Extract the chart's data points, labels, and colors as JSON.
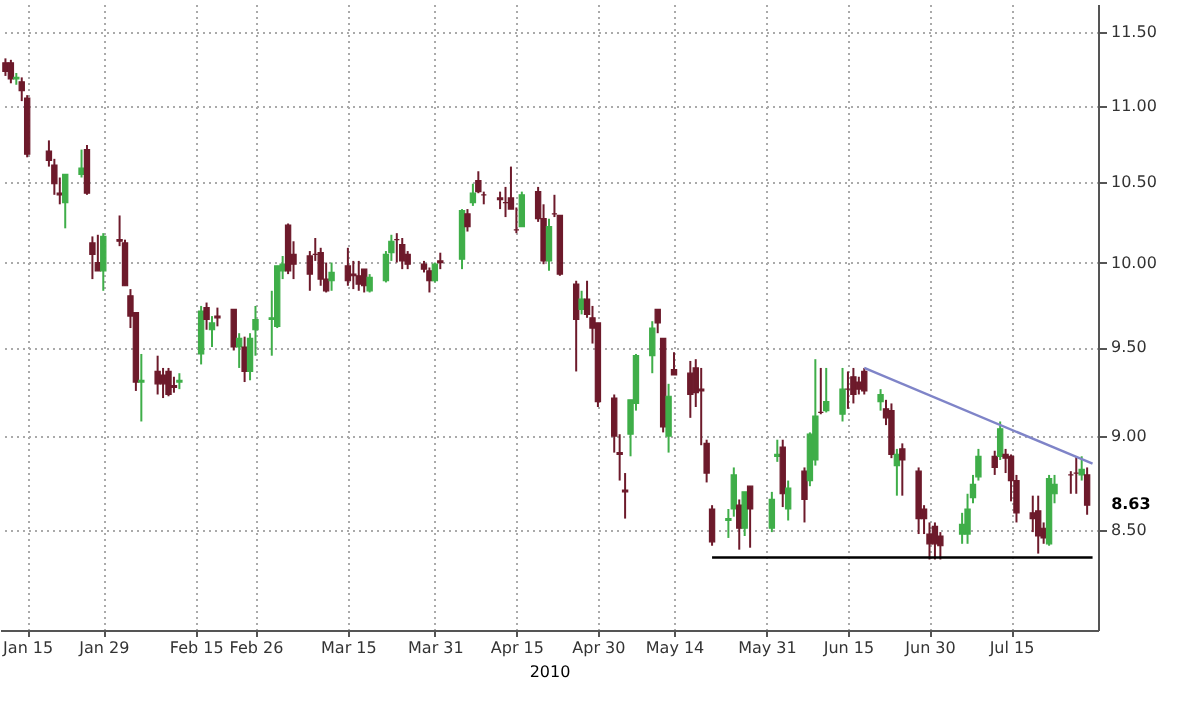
{
  "chart_data": {
    "type": "candlestick",
    "xlabel": "2010",
    "log": true,
    "grid": true,
    "x": [
      "2010-01-11",
      "2010-01-12",
      "2010-01-13",
      "2010-01-14",
      "2010-01-15",
      "2010-01-19",
      "2010-01-20",
      "2010-01-21",
      "2010-01-22",
      "2010-01-25",
      "2010-01-26",
      "2010-01-27",
      "2010-01-28",
      "2010-01-29",
      "2010-02-01",
      "2010-02-02",
      "2010-02-03",
      "2010-02-04",
      "2010-02-05",
      "2010-02-08",
      "2010-02-09",
      "2010-02-10",
      "2010-02-11",
      "2010-02-12",
      "2010-02-16",
      "2010-02-17",
      "2010-02-18",
      "2010-02-19",
      "2010-02-22",
      "2010-02-23",
      "2010-02-24",
      "2010-02-25",
      "2010-02-26",
      "2010-03-01",
      "2010-03-02",
      "2010-03-03",
      "2010-03-04",
      "2010-03-05",
      "2010-03-08",
      "2010-03-09",
      "2010-03-10",
      "2010-03-11",
      "2010-03-12",
      "2010-03-15",
      "2010-03-16",
      "2010-03-17",
      "2010-03-18",
      "2010-03-19",
      "2010-03-22",
      "2010-03-23",
      "2010-03-24",
      "2010-03-25",
      "2010-03-26",
      "2010-03-29",
      "2010-03-30",
      "2010-03-31",
      "2010-04-01",
      "2010-04-05",
      "2010-04-06",
      "2010-04-07",
      "2010-04-08",
      "2010-04-09",
      "2010-04-12",
      "2010-04-13",
      "2010-04-14",
      "2010-04-15",
      "2010-04-16",
      "2010-04-19",
      "2010-04-20",
      "2010-04-21",
      "2010-04-22",
      "2010-04-23",
      "2010-04-26",
      "2010-04-27",
      "2010-04-28",
      "2010-04-29",
      "2010-04-30",
      "2010-05-03",
      "2010-05-04",
      "2010-05-05",
      "2010-05-06",
      "2010-05-07",
      "2010-05-10",
      "2010-05-11",
      "2010-05-12",
      "2010-05-13",
      "2010-05-14",
      "2010-05-17",
      "2010-05-18",
      "2010-05-19",
      "2010-05-20",
      "2010-05-21",
      "2010-05-24",
      "2010-05-25",
      "2010-05-26",
      "2010-05-27",
      "2010-05-28",
      "2010-06-01",
      "2010-06-02",
      "2010-06-03",
      "2010-06-04",
      "2010-06-07",
      "2010-06-08",
      "2010-06-09",
      "2010-06-10",
      "2010-06-11",
      "2010-06-14",
      "2010-06-15",
      "2010-06-16",
      "2010-06-17",
      "2010-06-18",
      "2010-06-21",
      "2010-06-22",
      "2010-06-23",
      "2010-06-24",
      "2010-06-25",
      "2010-06-28",
      "2010-06-29",
      "2010-06-30",
      "2010-07-01",
      "2010-07-02",
      "2010-07-06",
      "2010-07-07",
      "2010-07-08",
      "2010-07-09",
      "2010-07-12",
      "2010-07-13",
      "2010-07-14",
      "2010-07-15",
      "2010-07-16",
      "2010-07-19",
      "2010-07-20",
      "2010-07-21",
      "2010-07-22",
      "2010-07-23",
      "2010-07-26",
      "2010-07-27",
      "2010-07-28",
      "2010-07-29"
    ],
    "ohlc": [
      [
        11.29,
        11.32,
        11.2,
        11.23
      ],
      [
        11.29,
        11.31,
        11.15,
        11.18
      ],
      [
        11.18,
        11.22,
        11.14,
        11.19
      ],
      [
        11.16,
        11.19,
        11.03,
        11.1
      ],
      [
        11.05,
        11.07,
        10.66,
        10.68
      ],
      [
        10.7,
        10.77,
        10.6,
        10.64
      ],
      [
        10.61,
        10.65,
        10.42,
        10.49
      ],
      [
        10.43,
        10.53,
        10.36,
        10.42
      ],
      [
        10.37,
        10.55,
        10.21,
        10.55
      ],
      [
        10.55,
        10.71,
        10.53,
        10.59
      ],
      [
        10.71,
        10.74,
        10.42,
        10.43
      ],
      [
        10.12,
        10.16,
        9.9,
        10.05
      ],
      [
        10.0,
        10.17,
        9.95,
        9.95
      ],
      [
        9.95,
        10.18,
        9.83,
        10.16
      ],
      [
        10.14,
        10.29,
        10.1,
        10.13
      ],
      [
        10.12,
        10.14,
        9.86,
        9.86
      ],
      [
        9.8,
        9.84,
        9.61,
        9.68
      ],
      [
        9.7,
        9.7,
        9.25,
        9.3
      ],
      [
        9.3,
        9.46,
        9.08,
        9.31
      ],
      [
        9.36,
        9.45,
        9.23,
        9.29
      ],
      [
        9.34,
        9.38,
        9.21,
        9.29
      ],
      [
        9.36,
        9.38,
        9.22,
        9.23
      ],
      [
        9.28,
        9.33,
        9.24,
        9.27
      ],
      [
        9.3,
        9.35,
        9.26,
        9.31
      ],
      [
        9.46,
        9.74,
        9.4,
        9.71
      ],
      [
        9.73,
        9.76,
        9.6,
        9.66
      ],
      [
        9.6,
        9.68,
        9.5,
        9.64
      ],
      [
        9.68,
        9.73,
        9.62,
        9.67
      ],
      [
        9.72,
        9.72,
        9.48,
        9.5
      ],
      [
        9.5,
        9.58,
        9.38,
        9.55
      ],
      [
        9.5,
        9.56,
        9.3,
        9.36
      ],
      [
        9.36,
        9.58,
        9.31,
        9.55
      ],
      [
        9.6,
        9.74,
        9.45,
        9.66
      ],
      [
        9.66,
        9.83,
        9.45,
        9.67
      ],
      [
        9.62,
        9.98,
        9.61,
        9.98
      ],
      [
        9.95,
        10.04,
        9.9,
        9.99
      ],
      [
        10.23,
        10.24,
        9.93,
        9.95
      ],
      [
        10.05,
        10.13,
        9.9,
        9.99
      ],
      [
        10.04,
        10.07,
        9.83,
        9.93
      ],
      [
        10.05,
        10.15,
        10.01,
        10.05
      ],
      [
        10.06,
        10.09,
        9.86,
        9.9
      ],
      [
        9.9,
        10.0,
        9.82,
        9.83
      ],
      [
        9.89,
        10.0,
        9.83,
        9.94
      ],
      [
        9.98,
        10.09,
        9.86,
        9.89
      ],
      [
        9.93,
        10.01,
        9.84,
        9.92
      ],
      [
        9.92,
        10.01,
        9.83,
        9.87
      ],
      [
        9.96,
        9.96,
        9.82,
        9.86
      ],
      [
        9.83,
        9.93,
        9.82,
        9.91
      ],
      [
        9.89,
        10.07,
        9.88,
        10.05
      ],
      [
        10.06,
        10.17,
        10.01,
        10.13
      ],
      [
        10.14,
        10.18,
        10.0,
        10.14
      ],
      [
        10.11,
        10.15,
        9.96,
        10.01
      ],
      [
        10.05,
        10.07,
        9.96,
        9.99
      ],
      [
        9.99,
        10.01,
        9.94,
        9.96
      ],
      [
        9.95,
        9.97,
        9.82,
        9.89
      ],
      [
        9.89,
        10.0,
        9.88,
        9.99
      ],
      [
        10.01,
        10.06,
        9.96,
        10.0
      ],
      [
        10.02,
        10.33,
        9.96,
        10.32
      ],
      [
        10.3,
        10.33,
        10.19,
        10.22
      ],
      [
        10.37,
        10.49,
        10.35,
        10.43
      ],
      [
        10.51,
        10.57,
        10.43,
        10.44
      ],
      [
        10.42,
        10.44,
        10.36,
        10.42
      ],
      [
        10.4,
        10.44,
        10.33,
        10.39
      ],
      [
        10.37,
        10.47,
        10.28,
        10.37
      ],
      [
        10.4,
        10.6,
        10.33,
        10.33
      ],
      [
        10.2,
        10.34,
        10.18,
        10.2
      ],
      [
        10.22,
        10.44,
        10.22,
        10.42
      ],
      [
        10.44,
        10.47,
        10.25,
        10.27
      ],
      [
        10.27,
        10.36,
        9.99,
        10.01
      ],
      [
        10.01,
        10.27,
        9.95,
        10.22
      ],
      [
        10.3,
        10.42,
        10.28,
        10.3
      ],
      [
        10.29,
        10.29,
        9.92,
        9.93
      ],
      [
        9.87,
        9.89,
        9.36,
        9.66
      ],
      [
        9.72,
        9.83,
        9.69,
        9.78
      ],
      [
        9.78,
        9.89,
        9.67,
        9.69
      ],
      [
        9.67,
        9.74,
        9.52,
        9.61
      ],
      [
        9.64,
        9.64,
        9.16,
        9.19
      ],
      [
        9.21,
        9.23,
        8.91,
        9.0
      ],
      [
        8.91,
        9.01,
        8.76,
        8.9
      ],
      [
        8.71,
        8.8,
        8.56,
        8.7
      ],
      [
        9.01,
        9.2,
        8.89,
        9.2
      ],
      [
        9.18,
        9.46,
        9.14,
        9.45
      ],
      [
        9.45,
        9.65,
        9.35,
        9.61
      ],
      [
        9.72,
        9.72,
        9.58,
        9.64
      ],
      [
        9.55,
        9.55,
        9.02,
        9.05
      ],
      [
        9.0,
        9.29,
        8.91,
        9.22
      ],
      [
        9.37,
        9.47,
        9.34,
        9.34
      ],
      [
        9.35,
        9.42,
        9.1,
        9.23
      ],
      [
        9.38,
        9.43,
        9.16,
        9.24
      ],
      [
        9.26,
        9.38,
        8.95,
        9.25
      ],
      [
        8.96,
        8.98,
        8.75,
        8.8
      ],
      [
        8.61,
        8.63,
        8.42,
        8.44
      ],
      [
        8.55,
        8.61,
        8.46,
        8.56
      ],
      [
        8.61,
        8.83,
        8.57,
        8.79
      ],
      [
        8.63,
        8.66,
        8.4,
        8.51
      ],
      [
        8.51,
        8.7,
        8.47,
        8.7
      ],
      [
        8.73,
        8.73,
        8.41,
        8.61
      ],
      [
        8.51,
        8.7,
        8.49,
        8.66
      ],
      [
        8.89,
        8.98,
        8.86,
        8.9
      ],
      [
        8.94,
        8.98,
        8.62,
        8.69
      ],
      [
        8.61,
        8.76,
        8.55,
        8.72
      ],
      [
        8.81,
        8.83,
        8.54,
        8.66
      ],
      [
        8.76,
        9.02,
        8.73,
        9.01
      ],
      [
        8.87,
        9.43,
        8.84,
        9.11
      ],
      [
        9.13,
        9.38,
        9.12,
        9.13
      ],
      [
        9.14,
        9.38,
        9.13,
        9.19
      ],
      [
        9.12,
        9.38,
        9.08,
        9.26
      ],
      [
        9.26,
        9.36,
        9.15,
        9.26
      ],
      [
        9.33,
        9.38,
        9.18,
        9.23
      ],
      [
        9.3,
        9.33,
        9.23,
        9.26
      ],
      [
        9.36,
        9.38,
        9.23,
        9.25
      ],
      [
        9.19,
        9.26,
        9.14,
        9.23
      ],
      [
        9.15,
        9.2,
        9.06,
        9.1
      ],
      [
        9.14,
        9.18,
        8.88,
        8.9
      ],
      [
        8.84,
        8.93,
        8.68,
        8.9
      ],
      [
        8.93,
        8.96,
        8.68,
        8.87
      ],
      [
        8.81,
        8.83,
        8.48,
        8.56
      ],
      [
        8.61,
        8.63,
        8.48,
        8.56
      ],
      [
        8.48,
        8.54,
        8.35,
        8.43
      ],
      [
        8.52,
        8.54,
        8.35,
        8.43
      ],
      [
        8.47,
        8.49,
        8.35,
        8.42
      ],
      [
        8.48,
        8.59,
        8.43,
        8.53
      ],
      [
        8.48,
        8.69,
        8.43,
        8.61
      ],
      [
        8.67,
        8.79,
        8.64,
        8.74
      ],
      [
        8.78,
        8.93,
        8.76,
        8.89
      ],
      [
        8.89,
        8.92,
        8.79,
        8.83
      ],
      [
        8.89,
        9.08,
        8.87,
        9.04
      ],
      [
        8.9,
        8.93,
        8.8,
        8.88
      ],
      [
        8.89,
        8.9,
        8.65,
        8.76
      ],
      [
        8.76,
        8.79,
        8.54,
        8.59
      ],
      [
        8.59,
        8.68,
        8.49,
        8.56
      ],
      [
        8.6,
        8.68,
        8.38,
        8.47
      ],
      [
        8.51,
        8.54,
        8.43,
        8.46
      ],
      [
        8.43,
        8.79,
        8.42,
        8.77
      ],
      [
        8.69,
        8.79,
        8.64,
        8.74
      ],
      [
        8.79,
        8.81,
        8.69,
        8.79
      ],
      [
        8.8,
        8.89,
        8.69,
        8.8
      ],
      [
        8.79,
        8.89,
        8.76,
        8.82
      ],
      [
        8.79,
        8.83,
        8.58,
        8.63
      ]
    ],
    "colors": [
      "#6d1a2b",
      "#6d1a2b",
      "#3fae49",
      "#6d1a2b",
      "#6d1a2b",
      "#6d1a2b",
      "#6d1a2b",
      "#6d1a2b",
      "#3fae49",
      "#3fae49",
      "#6d1a2b",
      "#6d1a2b",
      "#6d1a2b",
      "#3fae49",
      "#6d1a2b",
      "#6d1a2b",
      "#6d1a2b",
      "#6d1a2b",
      "#3fae49",
      "#6d1a2b",
      "#6d1a2b",
      "#6d1a2b",
      "#6d1a2b",
      "#3fae49",
      "#3fae49",
      "#6d1a2b",
      "#3fae49",
      "#6d1a2b",
      "#6d1a2b",
      "#3fae49",
      "#6d1a2b",
      "#3fae49",
      "#3fae49",
      "#3fae49",
      "#3fae49",
      "#3fae49",
      "#6d1a2b",
      "#6d1a2b",
      "#6d1a2b",
      "#6d1a2b",
      "#6d1a2b",
      "#6d1a2b",
      "#3fae49",
      "#6d1a2b",
      "#6d1a2b",
      "#6d1a2b",
      "#6d1a2b",
      "#3fae49",
      "#3fae49",
      "#3fae49",
      "#6d1a2b",
      "#6d1a2b",
      "#6d1a2b",
      "#6d1a2b",
      "#6d1a2b",
      "#3fae49",
      "#6d1a2b",
      "#3fae49",
      "#6d1a2b",
      "#3fae49",
      "#6d1a2b",
      "#6d1a2b",
      "#6d1a2b",
      "#6d1a2b",
      "#6d1a2b",
      "#6d1a2b",
      "#3fae49",
      "#6d1a2b",
      "#6d1a2b",
      "#3fae49",
      "#6d1a2b",
      "#6d1a2b",
      "#6d1a2b",
      "#3fae49",
      "#6d1a2b",
      "#6d1a2b",
      "#6d1a2b",
      "#6d1a2b",
      "#6d1a2b",
      "#6d1a2b",
      "#3fae49",
      "#3fae49",
      "#3fae49",
      "#6d1a2b",
      "#6d1a2b",
      "#3fae49",
      "#6d1a2b",
      "#6d1a2b",
      "#6d1a2b",
      "#6d1a2b",
      "#6d1a2b",
      "#6d1a2b",
      "#3fae49",
      "#3fae49",
      "#6d1a2b",
      "#3fae49",
      "#6d1a2b",
      "#3fae49",
      "#3fae49",
      "#6d1a2b",
      "#3fae49",
      "#6d1a2b",
      "#3fae49",
      "#3fae49",
      "#6d1a2b",
      "#3fae49",
      "#3fae49",
      "#6d1a2b",
      "#6d1a2b",
      "#6d1a2b",
      "#6d1a2b",
      "#3fae49",
      "#6d1a2b",
      "#6d1a2b",
      "#3fae49",
      "#6d1a2b",
      "#6d1a2b",
      "#6d1a2b",
      "#6d1a2b",
      "#6d1a2b",
      "#6d1a2b",
      "#3fae49",
      "#3fae49",
      "#3fae49",
      "#3fae49",
      "#6d1a2b",
      "#3fae49",
      "#6d1a2b",
      "#6d1a2b",
      "#6d1a2b",
      "#6d1a2b",
      "#6d1a2b",
      "#6d1a2b",
      "#3fae49",
      "#3fae49",
      "#6d1a2b",
      "#6d1a2b",
      "#3fae49",
      "#6d1a2b"
    ],
    "series": [
      {
        "type": "line",
        "line_style": "solid",
        "color": "#7f84c8",
        "x": [
          "2010-06-18",
          "2010-07-30"
        ],
        "values": [
          9.38,
          8.85
        ]
      },
      {
        "type": "line",
        "line_style": "solid",
        "color": "#000000",
        "x": [
          "2010-05-21",
          "2010-07-30"
        ],
        "values": [
          8.36,
          8.36
        ]
      }
    ],
    "annotations": [
      {
        "text": "8.63",
        "x": "2010-07-29",
        "y": 8.63
      }
    ],
    "xlim": [
      "2010-01-10",
      "2010-07-31"
    ],
    "xticks": [
      {
        "value": "2010-01-15",
        "label": "Jan 15"
      },
      {
        "value": "2010-01-29",
        "label": "Jan 29"
      },
      {
        "value": "2010-02-15",
        "label": "Feb 15"
      },
      {
        "value": "2010-02-26",
        "label": "Feb 26"
      },
      {
        "value": "2010-03-15",
        "label": "Mar 15"
      },
      {
        "value": "2010-03-31",
        "label": "Mar 31"
      },
      {
        "value": "2010-04-15",
        "label": "Apr 15"
      },
      {
        "value": "2010-04-30",
        "label": "Apr 30"
      },
      {
        "value": "2010-05-14",
        "label": "May 14"
      },
      {
        "value": "2010-05-31",
        "label": "May 31"
      },
      {
        "value": "2010-06-15",
        "label": "Jun 15"
      },
      {
        "value": "2010-06-30",
        "label": "Jun 30"
      },
      {
        "value": "2010-07-15",
        "label": "Jul 15"
      }
    ],
    "ylim": [
      8.0,
      11.7
    ],
    "yticks": [
      {
        "value": 8.5,
        "label": "8.50"
      },
      {
        "value": 9.0,
        "label": "9.00"
      },
      {
        "value": 9.5,
        "label": "9.50"
      },
      {
        "value": 10.0,
        "label": "10.00"
      },
      {
        "value": 10.5,
        "label": "10.50"
      },
      {
        "value": 11.0,
        "label": "11.00"
      },
      {
        "value": 11.5,
        "label": "11.50"
      }
    ]
  }
}
